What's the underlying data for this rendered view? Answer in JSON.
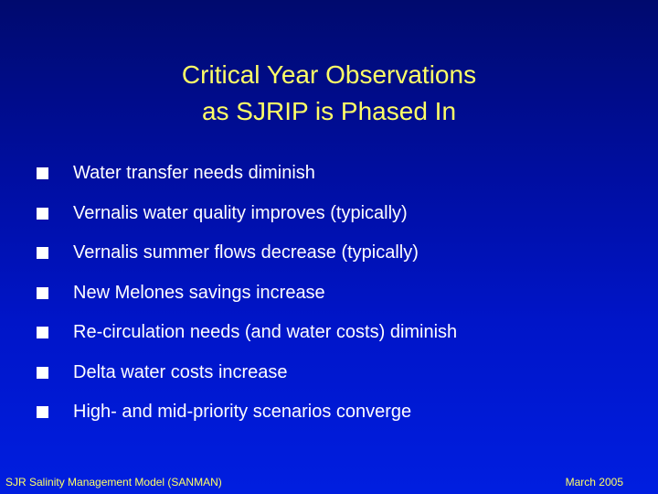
{
  "slide": {
    "title_lines": [
      "Critical Year Observations",
      "as SJRIP is Phased In"
    ],
    "bullets": [
      "Water transfer needs diminish",
      "Vernalis water quality improves (typically)",
      "Vernalis summer flows decrease (typically)",
      "New Melones savings increase",
      "Re-circulation needs (and water costs) diminish",
      "Delta water costs increase",
      "High- and mid-priority scenarios converge"
    ],
    "footer_left": "SJR Salinity Management Model (SANMAN)",
    "footer_right": "March 2005"
  },
  "colors": {
    "background": "#0010b0",
    "title": "#ffff66",
    "text": "#ffffff",
    "footer": "#ffff66"
  }
}
